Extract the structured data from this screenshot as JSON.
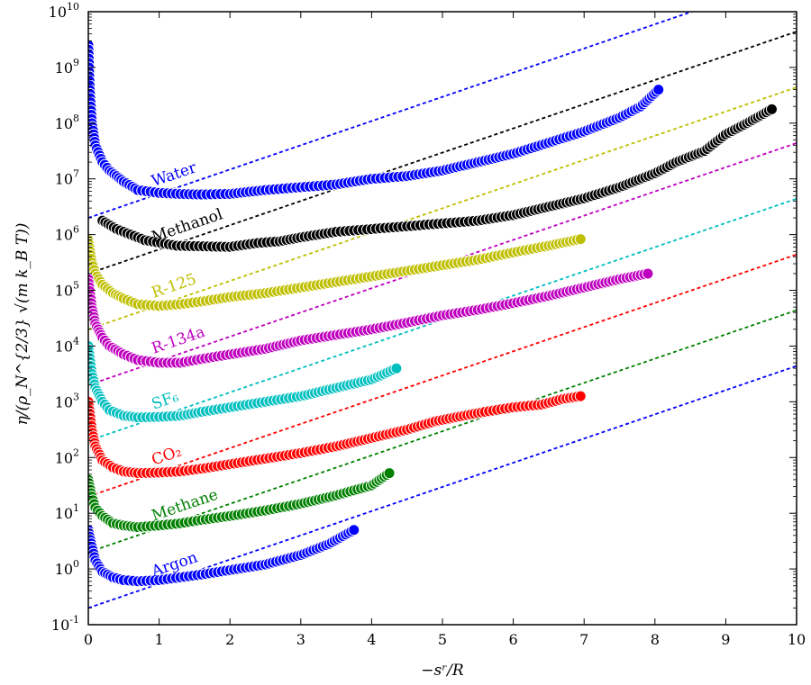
{
  "chart_data": {
    "type": "scatter",
    "xlabel": "−sʳ/R",
    "ylabel": "η/(ρ_N^{2/3} √(m k_B T))",
    "xlim": [
      0,
      10
    ],
    "ylim_log10": [
      -1,
      10
    ],
    "y_scale": "log",
    "grid": false,
    "legend": "none",
    "x_ticks": [
      "0",
      "1",
      "2",
      "3",
      "4",
      "5",
      "6",
      "7",
      "8",
      "9",
      "10"
    ],
    "y_ticks": [
      {
        "base": "10",
        "exp": "-1"
      },
      {
        "base": "10",
        "exp": "0"
      },
      {
        "base": "10",
        "exp": "1"
      },
      {
        "base": "10",
        "exp": "2"
      },
      {
        "base": "10",
        "exp": "3"
      },
      {
        "base": "10",
        "exp": "4"
      },
      {
        "base": "10",
        "exp": "5"
      },
      {
        "base": "10",
        "exp": "6"
      },
      {
        "base": "10",
        "exp": "7"
      },
      {
        "base": "10",
        "exp": "8"
      },
      {
        "base": "10",
        "exp": "9"
      },
      {
        "base": "10",
        "exp": "10"
      }
    ],
    "series": [
      {
        "name": "Water",
        "color": "#0000ff",
        "fit": {
          "intercept_log10": 6.3,
          "slope_log10_per_unit": 0.4343
        },
        "points": [
          [
            0,
            9.4
          ],
          [
            0.02,
            8.6
          ],
          [
            0.05,
            8.0
          ],
          [
            0.1,
            7.6
          ],
          [
            0.2,
            7.3
          ],
          [
            0.3,
            7.15
          ],
          [
            0.5,
            6.95
          ],
          [
            0.7,
            6.8
          ],
          [
            1.0,
            6.75
          ],
          [
            1.3,
            6.73
          ],
          [
            1.6,
            6.72
          ],
          [
            2.0,
            6.73
          ],
          [
            2.5,
            6.8
          ],
          [
            3.0,
            6.85
          ],
          [
            3.5,
            6.9
          ],
          [
            4.0,
            7.0
          ],
          [
            4.5,
            7.05
          ],
          [
            5.0,
            7.15
          ],
          [
            5.5,
            7.3
          ],
          [
            6.0,
            7.45
          ],
          [
            6.5,
            7.65
          ],
          [
            7.0,
            7.85
          ],
          [
            7.5,
            8.1
          ],
          [
            7.8,
            8.3
          ],
          [
            8.05,
            8.6
          ]
        ]
      },
      {
        "name": "Methanol",
        "color": "#000000",
        "fit": {
          "intercept_log10": 5.3,
          "slope_log10_per_unit": 0.4343
        },
        "points": [
          [
            0.2,
            6.25
          ],
          [
            0.4,
            6.1
          ],
          [
            0.6,
            6.0
          ],
          [
            0.8,
            5.9
          ],
          [
            1.25,
            5.8
          ],
          [
            2.0,
            5.78
          ],
          [
            2.4,
            5.85
          ],
          [
            2.7,
            5.88
          ],
          [
            3.0,
            5.95
          ],
          [
            3.5,
            6.05
          ],
          [
            4.0,
            6.1
          ],
          [
            4.5,
            6.15
          ],
          [
            5.0,
            6.2
          ],
          [
            5.5,
            6.25
          ],
          [
            6.0,
            6.35
          ],
          [
            6.5,
            6.5
          ],
          [
            7.0,
            6.65
          ],
          [
            7.5,
            6.85
          ],
          [
            8.0,
            7.1
          ],
          [
            8.3,
            7.3
          ],
          [
            8.7,
            7.5
          ],
          [
            9.0,
            7.8
          ],
          [
            9.3,
            8.0
          ],
          [
            9.65,
            8.25
          ]
        ]
      },
      {
        "name": "R-125",
        "color": "#bfbf00",
        "fit": {
          "intercept_log10": 4.3,
          "slope_log10_per_unit": 0.4343
        },
        "points": [
          [
            0,
            5.9
          ],
          [
            0.05,
            5.5
          ],
          [
            0.1,
            5.3
          ],
          [
            0.2,
            5.1
          ],
          [
            0.35,
            4.95
          ],
          [
            0.5,
            4.85
          ],
          [
            0.7,
            4.75
          ],
          [
            1.0,
            4.72
          ],
          [
            1.3,
            4.75
          ],
          [
            1.6,
            4.8
          ],
          [
            2.0,
            4.88
          ],
          [
            2.5,
            4.95
          ],
          [
            3.0,
            5.05
          ],
          [
            3.5,
            5.15
          ],
          [
            4.0,
            5.25
          ],
          [
            4.5,
            5.35
          ],
          [
            5.0,
            5.45
          ],
          [
            5.5,
            5.55
          ],
          [
            6.0,
            5.68
          ],
          [
            6.5,
            5.8
          ],
          [
            6.95,
            5.92
          ]
        ]
      },
      {
        "name": "R-134a",
        "color": "#bf00bf",
        "fit": {
          "intercept_log10": 3.3,
          "slope_log10_per_unit": 0.4343
        },
        "points": [
          [
            0,
            5.2
          ],
          [
            0.05,
            4.7
          ],
          [
            0.1,
            4.4
          ],
          [
            0.2,
            4.15
          ],
          [
            0.3,
            4.0
          ],
          [
            0.5,
            3.85
          ],
          [
            0.7,
            3.75
          ],
          [
            1.0,
            3.7
          ],
          [
            1.3,
            3.7
          ],
          [
            1.65,
            3.78
          ],
          [
            2.0,
            3.85
          ],
          [
            2.5,
            3.95
          ],
          [
            3.0,
            4.1
          ],
          [
            3.5,
            4.2
          ],
          [
            4.0,
            4.3
          ],
          [
            4.5,
            4.42
          ],
          [
            5.0,
            4.55
          ],
          [
            5.5,
            4.65
          ],
          [
            6.0,
            4.77
          ],
          [
            6.5,
            4.9
          ],
          [
            7.0,
            5.05
          ],
          [
            7.5,
            5.2
          ],
          [
            7.9,
            5.3
          ]
        ]
      },
      {
        "name": "SF₆",
        "color": "#00bfbf",
        "fit": {
          "intercept_log10": 2.3,
          "slope_log10_per_unit": 0.4343
        },
        "points": [
          [
            0,
            4.0
          ],
          [
            0.05,
            3.5
          ],
          [
            0.1,
            3.25
          ],
          [
            0.2,
            3.0
          ],
          [
            0.3,
            2.85
          ],
          [
            0.5,
            2.75
          ],
          [
            0.7,
            2.72
          ],
          [
            1.0,
            2.73
          ],
          [
            1.3,
            2.75
          ],
          [
            1.6,
            2.82
          ],
          [
            2.0,
            2.9
          ],
          [
            2.5,
            3.0
          ],
          [
            3.0,
            3.1
          ],
          [
            3.5,
            3.25
          ],
          [
            4.0,
            3.4
          ],
          [
            4.35,
            3.6
          ]
        ]
      },
      {
        "name": "CO₂",
        "color": "#ff0000",
        "fit": {
          "intercept_log10": 1.3,
          "slope_log10_per_unit": 0.4343
        },
        "points": [
          [
            0,
            3.0
          ],
          [
            0.05,
            2.5
          ],
          [
            0.1,
            2.2
          ],
          [
            0.2,
            1.95
          ],
          [
            0.35,
            1.82
          ],
          [
            0.5,
            1.75
          ],
          [
            0.7,
            1.72
          ],
          [
            1.0,
            1.73
          ],
          [
            1.3,
            1.75
          ],
          [
            1.6,
            1.8
          ],
          [
            2.0,
            1.88
          ],
          [
            2.5,
            1.98
          ],
          [
            3.0,
            2.08
          ],
          [
            3.5,
            2.2
          ],
          [
            4.0,
            2.35
          ],
          [
            4.5,
            2.5
          ],
          [
            4.9,
            2.65
          ],
          [
            5.3,
            2.75
          ],
          [
            5.6,
            2.82
          ],
          [
            6.0,
            2.9
          ],
          [
            6.4,
            2.95
          ],
          [
            6.7,
            3.05
          ],
          [
            6.95,
            3.1
          ]
        ]
      },
      {
        "name": "Methane",
        "color": "#008000",
        "fit": {
          "intercept_log10": 0.3,
          "slope_log10_per_unit": 0.4343
        },
        "points": [
          [
            0,
            1.6
          ],
          [
            0.05,
            1.3
          ],
          [
            0.1,
            1.1
          ],
          [
            0.2,
            0.95
          ],
          [
            0.35,
            0.82
          ],
          [
            0.5,
            0.78
          ],
          [
            0.7,
            0.75
          ],
          [
            1.0,
            0.78
          ],
          [
            1.3,
            0.82
          ],
          [
            1.6,
            0.88
          ],
          [
            2.0,
            0.95
          ],
          [
            2.5,
            1.05
          ],
          [
            3.0,
            1.17
          ],
          [
            3.5,
            1.32
          ],
          [
            4.0,
            1.5
          ],
          [
            4.25,
            1.72
          ]
        ]
      },
      {
        "name": "Argon",
        "color": "#0000ff",
        "fit": {
          "intercept_log10": -0.7,
          "slope_log10_per_unit": 0.4343
        },
        "points": [
          [
            0,
            0.7
          ],
          [
            0.05,
            0.4
          ],
          [
            0.1,
            0.15
          ],
          [
            0.2,
            -0.05
          ],
          [
            0.35,
            -0.15
          ],
          [
            0.5,
            -0.2
          ],
          [
            0.7,
            -0.22
          ],
          [
            1.0,
            -0.2
          ],
          [
            1.3,
            -0.15
          ],
          [
            1.6,
            -0.1
          ],
          [
            2.0,
            -0.02
          ],
          [
            2.5,
            0.08
          ],
          [
            3.0,
            0.25
          ],
          [
            3.4,
            0.45
          ],
          [
            3.75,
            0.7
          ]
        ]
      }
    ]
  }
}
